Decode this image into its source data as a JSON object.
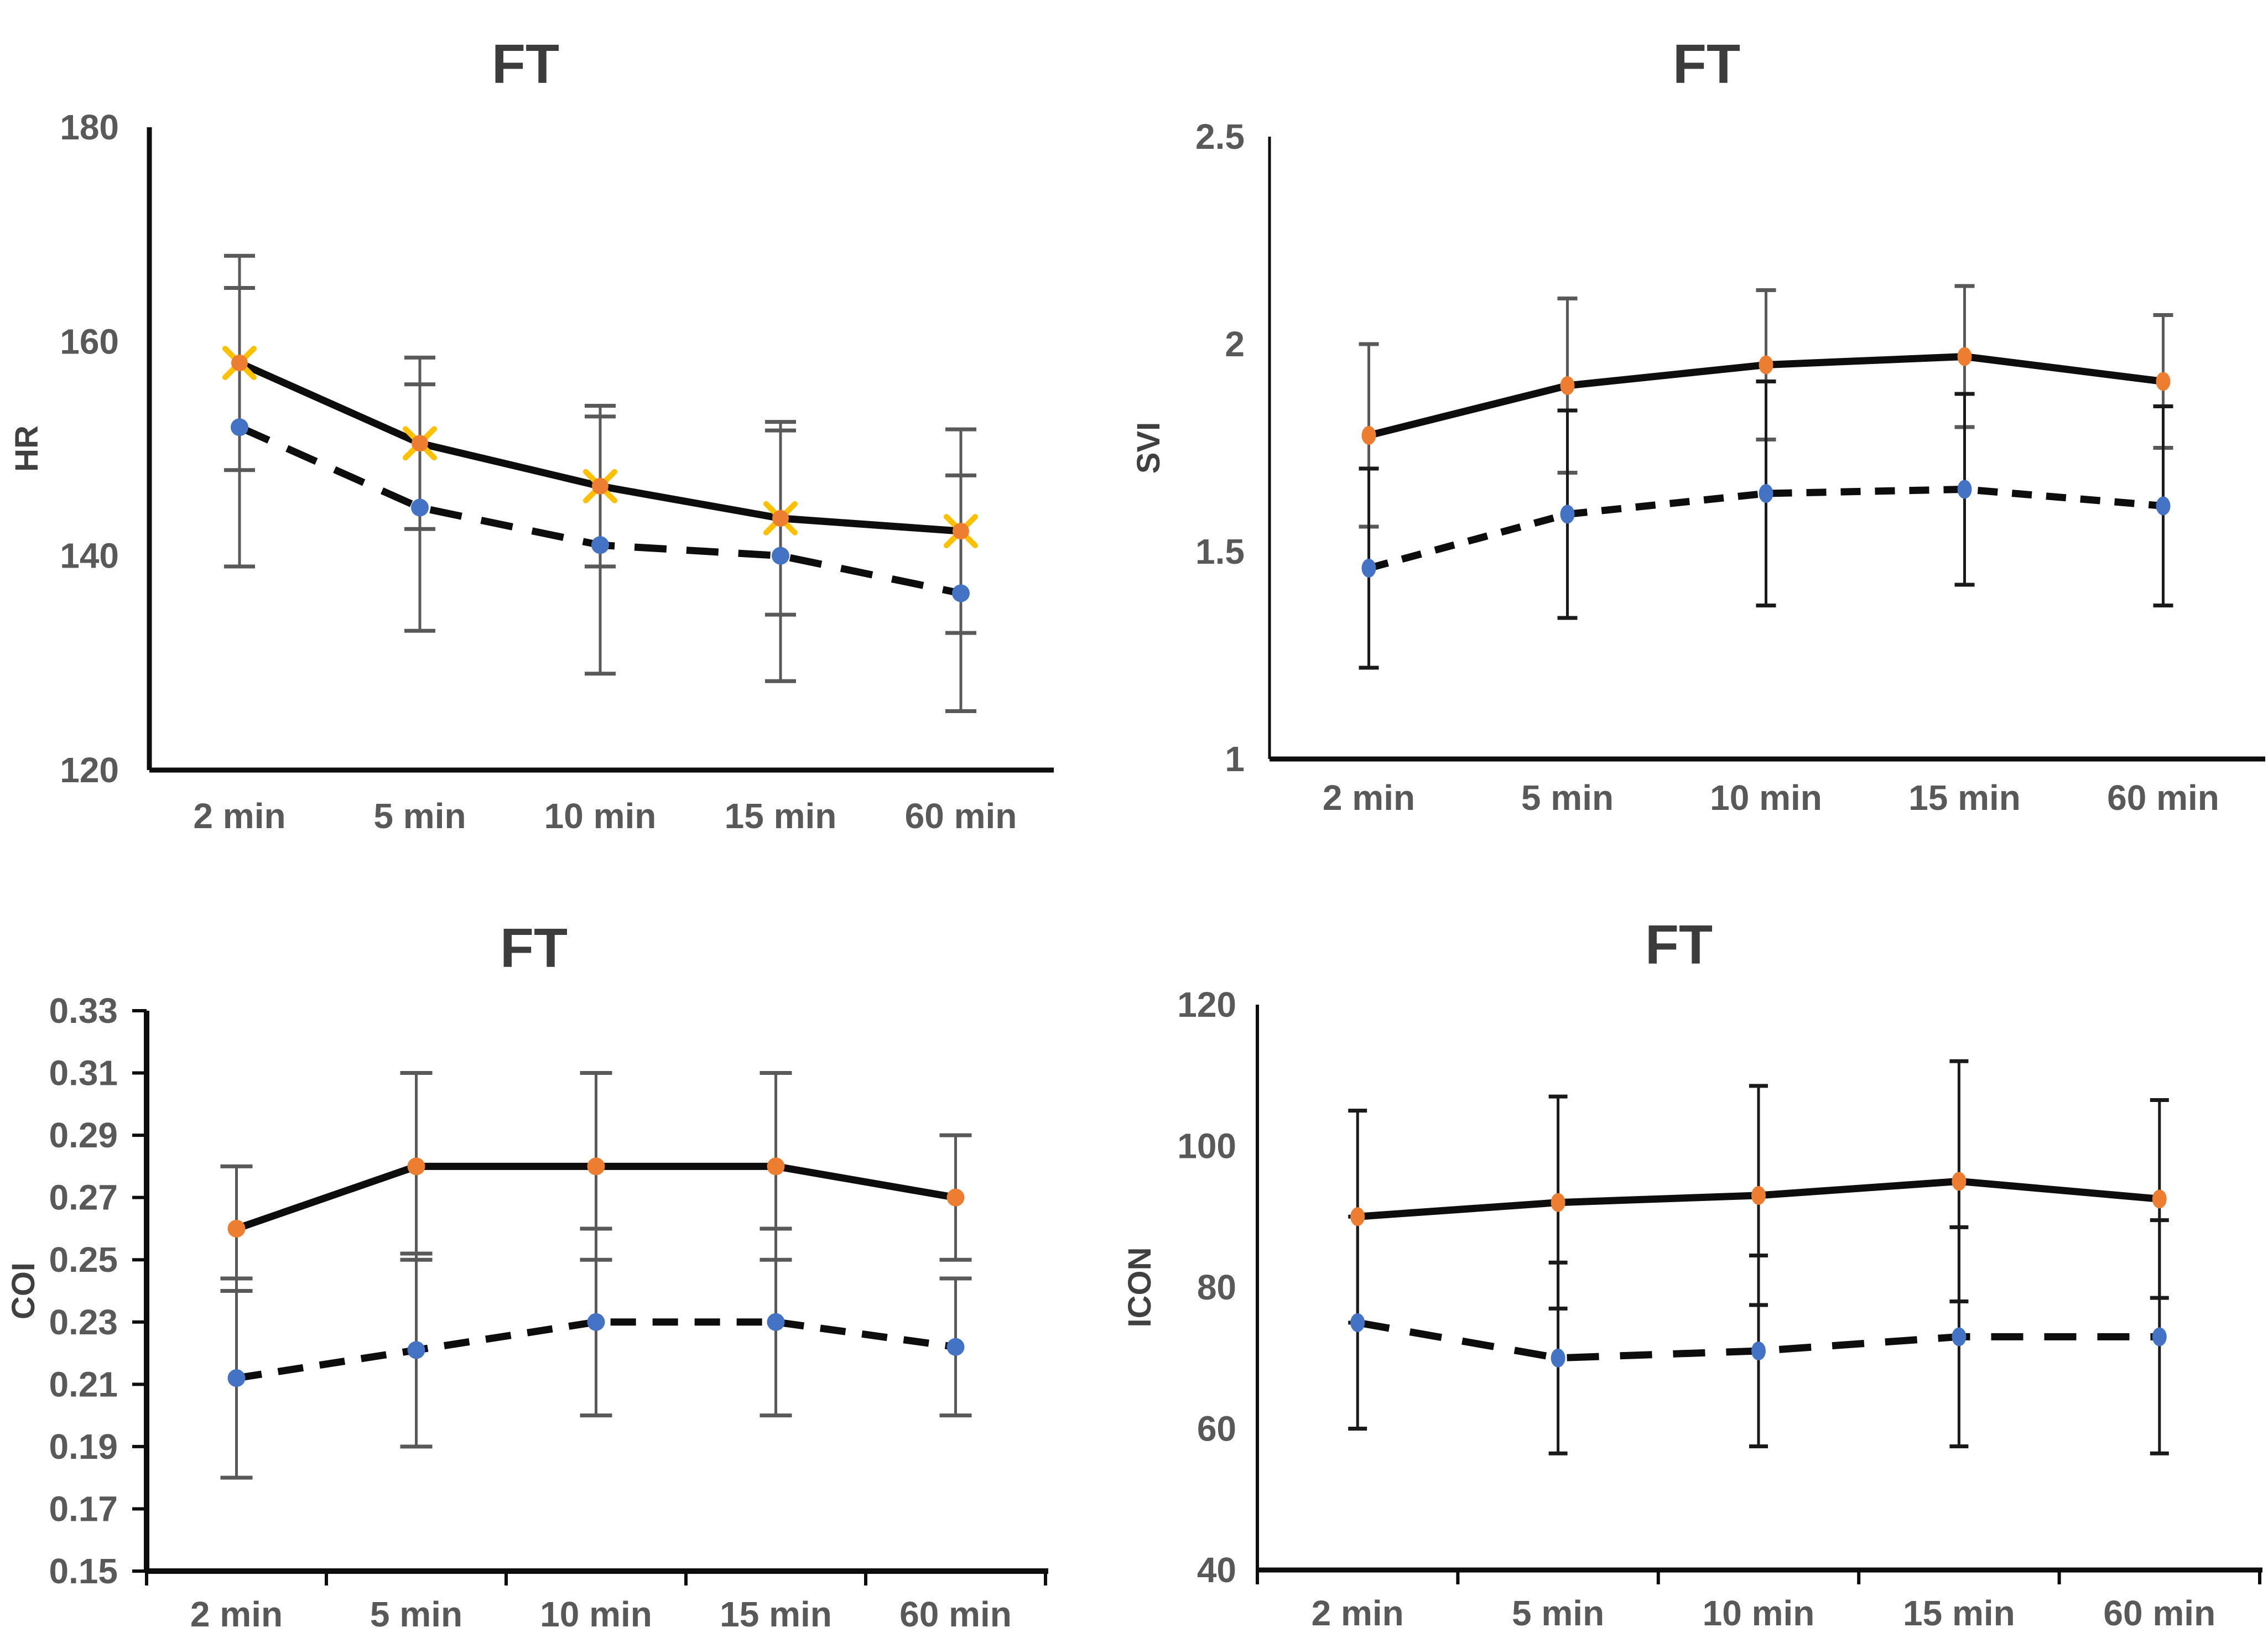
{
  "figure": {
    "background": "#FFFFFF",
    "panel_layout": "2x2",
    "legend": "none",
    "grid": false
  },
  "colors": {
    "orange_marker": "#ED7D31",
    "orange_marker_accent": "#FFC000",
    "blue_marker": "#4472C4",
    "series_line": "#0D0D0D",
    "error_bar_gray": "#595959",
    "error_bar_black": "#1A1A1A",
    "tick_label_text": "#595959",
    "title_text": "#3C3C3C",
    "axis_line": "#0D0D0D"
  },
  "chart_data": [
    {
      "id": "hr",
      "type": "line",
      "title": "FT",
      "ylabel": "HR",
      "xlabel": "",
      "categories": [
        "2 min",
        "5 min",
        "10 min",
        "15 min",
        "60 min"
      ],
      "ylim": [
        120,
        180
      ],
      "yticks": [
        {
          "value": 180,
          "label": "180"
        },
        {
          "value": 160,
          "label": "160"
        },
        {
          "value": 140,
          "label": "140"
        },
        {
          "value": 120,
          "label": "120"
        }
      ],
      "legend": "none",
      "grid": false,
      "series": [
        {
          "name": "solid-orange",
          "line_style": "solid",
          "marker": "x-circle",
          "marker_color": "#ED7D31",
          "marker_accent": "#FFC000",
          "line_color": "#0D0D0D",
          "error_color": "#595959",
          "values": [
            158,
            150.5,
            146.5,
            143.5,
            142.3
          ],
          "errors": [
            10,
            8,
            7.5,
            9,
            9.5
          ]
        },
        {
          "name": "dashed-blue",
          "line_style": "dashed",
          "marker": "circle",
          "marker_color": "#4472C4",
          "line_color": "#0D0D0D",
          "error_color": "#595959",
          "values": [
            152,
            144.5,
            141,
            140,
            136.5
          ],
          "errors": [
            13,
            11.5,
            12,
            11.7,
            11
          ]
        }
      ]
    },
    {
      "id": "svi",
      "type": "line",
      "title": "FT",
      "ylabel": "SVI",
      "xlabel": "",
      "categories": [
        "2 min",
        "5 min",
        "10 min",
        "15 min",
        "60 min"
      ],
      "ylim": [
        1,
        2.5
      ],
      "yticks": [
        {
          "value": 2.5,
          "label": "2.5"
        },
        {
          "value": 2,
          "label": "2"
        },
        {
          "value": 1.5,
          "label": "1.5"
        },
        {
          "value": 1,
          "label": "1"
        }
      ],
      "legend": "none",
      "grid": false,
      "series": [
        {
          "name": "solid-orange",
          "line_style": "solid",
          "marker": "ellipse",
          "marker_color": "#ED7D31",
          "line_color": "#0D0D0D",
          "error_color": "#595959",
          "values": [
            1.78,
            1.9,
            1.95,
            1.97,
            1.91
          ],
          "errors": [
            0.22,
            0.21,
            0.18,
            0.17,
            0.16
          ]
        },
        {
          "name": "dashed-blue",
          "line_style": "dashed",
          "marker": "ellipse",
          "marker_color": "#4472C4",
          "line_color": "#0D0D0D",
          "error_color": "#1A1A1A",
          "values": [
            1.46,
            1.59,
            1.64,
            1.65,
            1.61
          ],
          "errors": [
            0.24,
            0.25,
            0.27,
            0.23,
            0.24
          ]
        }
      ]
    },
    {
      "id": "coi",
      "type": "line",
      "title": "FT",
      "ylabel": "COI",
      "xlabel": "",
      "categories": [
        "2 min",
        "5 min",
        "10 min",
        "15 min",
        "60 min"
      ],
      "ylim": [
        0.15,
        0.33
      ],
      "yticks": [
        {
          "value": 0.33,
          "label": "0.33"
        },
        {
          "value": 0.31,
          "label": "0.31"
        },
        {
          "value": 0.29,
          "label": "0.29"
        },
        {
          "value": 0.27,
          "label": "0.27"
        },
        {
          "value": 0.25,
          "label": "0.25"
        },
        {
          "value": 0.23,
          "label": "0.23"
        },
        {
          "value": 0.21,
          "label": "0.21"
        },
        {
          "value": 0.19,
          "label": "0.19"
        },
        {
          "value": 0.17,
          "label": "0.17"
        },
        {
          "value": 0.15,
          "label": "0.15"
        }
      ],
      "legend": "none",
      "grid": false,
      "series": [
        {
          "name": "solid-orange",
          "line_style": "solid",
          "marker": "circle",
          "marker_color": "#ED7D31",
          "line_color": "#0D0D0D",
          "error_color": "#595959",
          "values": [
            0.26,
            0.28,
            0.28,
            0.28,
            0.27
          ],
          "errors": [
            0.02,
            0.03,
            0.03,
            0.03,
            0.02
          ]
        },
        {
          "name": "dashed-blue",
          "line_style": "dashed",
          "marker": "circle",
          "marker_color": "#4472C4",
          "line_color": "#0D0D0D",
          "error_color": "#595959",
          "values": [
            0.212,
            0.221,
            0.23,
            0.23,
            0.222
          ],
          "errors": [
            0.032,
            0.031,
            0.03,
            0.03,
            0.022
          ]
        }
      ]
    },
    {
      "id": "icon",
      "type": "line",
      "title": "FT",
      "ylabel": "ICON",
      "xlabel": "",
      "categories": [
        "2 min",
        "5 min",
        "10 min",
        "15 min",
        "60 min"
      ],
      "ylim": [
        40,
        120
      ],
      "yticks": [
        {
          "value": 120,
          "label": "120"
        },
        {
          "value": 100,
          "label": "100"
        },
        {
          "value": 80,
          "label": "80"
        },
        {
          "value": 60,
          "label": "60"
        },
        {
          "value": 40,
          "label": "40"
        }
      ],
      "legend": "none",
      "grid": false,
      "series": [
        {
          "name": "solid-orange",
          "line_style": "solid",
          "marker": "ellipse",
          "marker_color": "#ED7D31",
          "line_color": "#0D0D0D",
          "error_color": "#1A1A1A",
          "values": [
            90,
            92,
            93,
            95,
            92.5
          ],
          "errors": [
            15,
            15,
            15.5,
            17,
            14
          ]
        },
        {
          "name": "dashed-blue",
          "line_style": "dashed",
          "marker": "ellipse",
          "marker_color": "#4472C4",
          "line_color": "#0D0D0D",
          "error_color": "#1A1A1A",
          "values": [
            75,
            70,
            71,
            73,
            73
          ],
          "errors": [
            15,
            13.5,
            13.5,
            15.5,
            16.5
          ]
        }
      ]
    }
  ]
}
